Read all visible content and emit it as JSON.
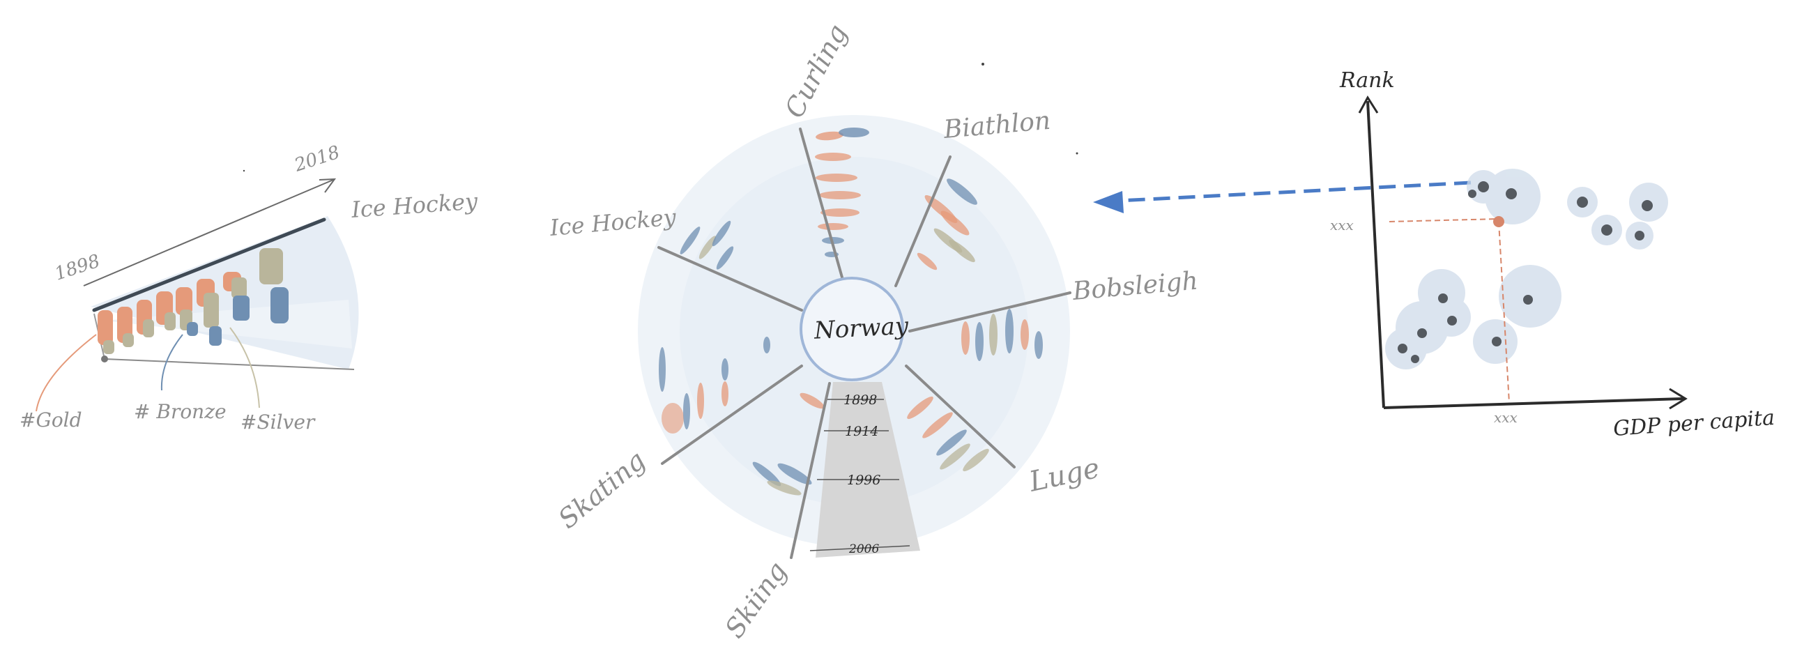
{
  "colors": {
    "gold": "#e59a7a",
    "bronze": "#6f8fb2",
    "silver": "#b9b59b",
    "fan_bg": "#e3ebf4",
    "fan_bg_light": "#eef3f8",
    "spoke": "#8a8a8a",
    "center_ring": "#9fb6d8",
    "timeline_bg": "#d6d6d6",
    "arrow": "#4a7bc6",
    "guide": "#d7866a",
    "dot": "#555a60",
    "bubble": "#cfdcea",
    "axis": "#2b2b2b"
  },
  "fan_sketch": {
    "start_year": "1898",
    "end_year": "2018",
    "sport_label": "Ice Hockey",
    "legend": [
      {
        "label": "#Gold",
        "color": "#e59a7a"
      },
      {
        "label": "# Bronze",
        "color": "#6f8fb2"
      },
      {
        "label": "#Silver",
        "color": "#c7c2a8"
      }
    ]
  },
  "radial_sketch": {
    "country": "Norway",
    "sports": [
      "Curling",
      "Biathlon",
      "Bobsleigh",
      "Luge",
      "Skiing",
      "Skating",
      "Ice Hockey"
    ],
    "timeline_years": [
      "1898",
      "1914",
      "1996",
      "2006"
    ]
  },
  "scatter_sketch": {
    "y_label": "Rank",
    "x_label": "GDP per capita",
    "x_marker": "xxx",
    "y_marker": "xxx",
    "icons": [
      "dashed-arrow-left-icon"
    ]
  }
}
